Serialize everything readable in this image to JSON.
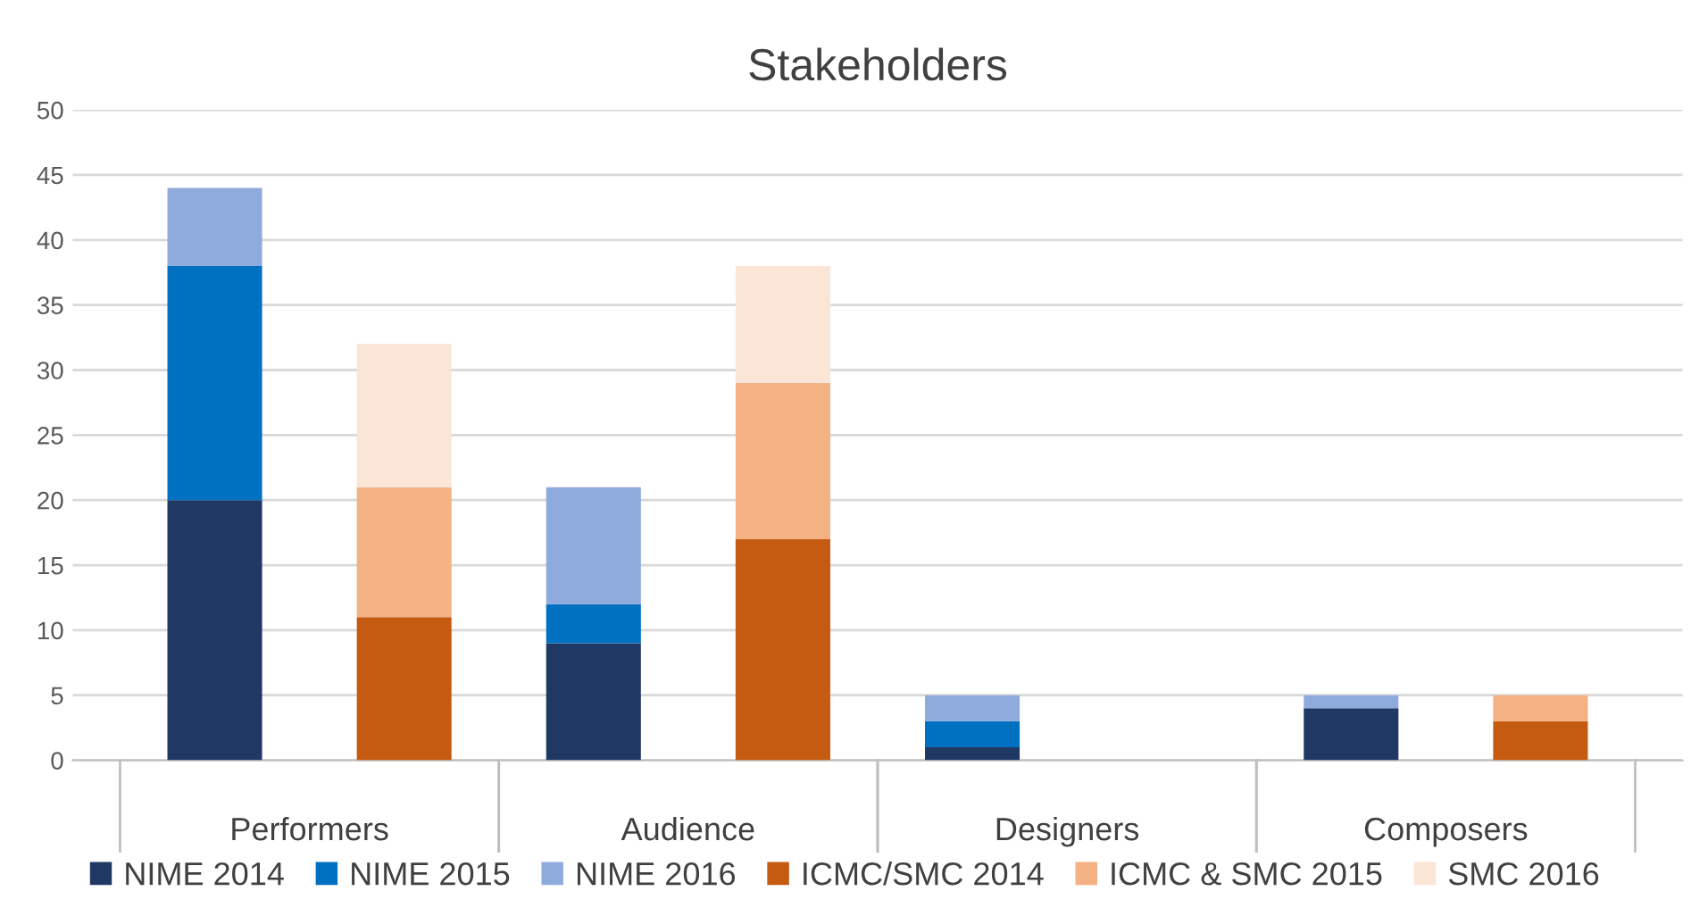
{
  "chart_data": {
    "type": "bar",
    "title": "Stakeholders",
    "stacked": true,
    "categories": [
      "Performers",
      null,
      "Audience",
      null,
      "Designers",
      null,
      "Composers",
      null
    ],
    "series": [
      {
        "name": "NIME 2014",
        "color": "#203864",
        "values": [
          20,
          null,
          9,
          null,
          1,
          null,
          4,
          null
        ]
      },
      {
        "name": "NIME 2015",
        "color": "#0070c0",
        "values": [
          18,
          null,
          3,
          null,
          2,
          null,
          0,
          null
        ]
      },
      {
        "name": "NIME 2016",
        "color": "#8faadc",
        "values": [
          6,
          null,
          9,
          null,
          2,
          null,
          1,
          null
        ]
      },
      {
        "name": "ICMC/SMC 2014",
        "color": "#c55a11",
        "values": [
          null,
          11,
          null,
          17,
          null,
          0,
          null,
          3
        ]
      },
      {
        "name": "ICMC & SMC 2015",
        "color": "#f4b183",
        "values": [
          null,
          10,
          null,
          12,
          null,
          0,
          null,
          2
        ]
      },
      {
        "name": "SMC 2016",
        "color": "#fbe5d6",
        "values": [
          null,
          11,
          null,
          9,
          null,
          0,
          null,
          0
        ]
      }
    ],
    "ylim": [
      0,
      50
    ],
    "yticks": [
      0,
      5,
      10,
      15,
      20,
      25,
      30,
      35,
      40,
      45,
      50
    ],
    "grid": "y",
    "legend": "bottom"
  }
}
